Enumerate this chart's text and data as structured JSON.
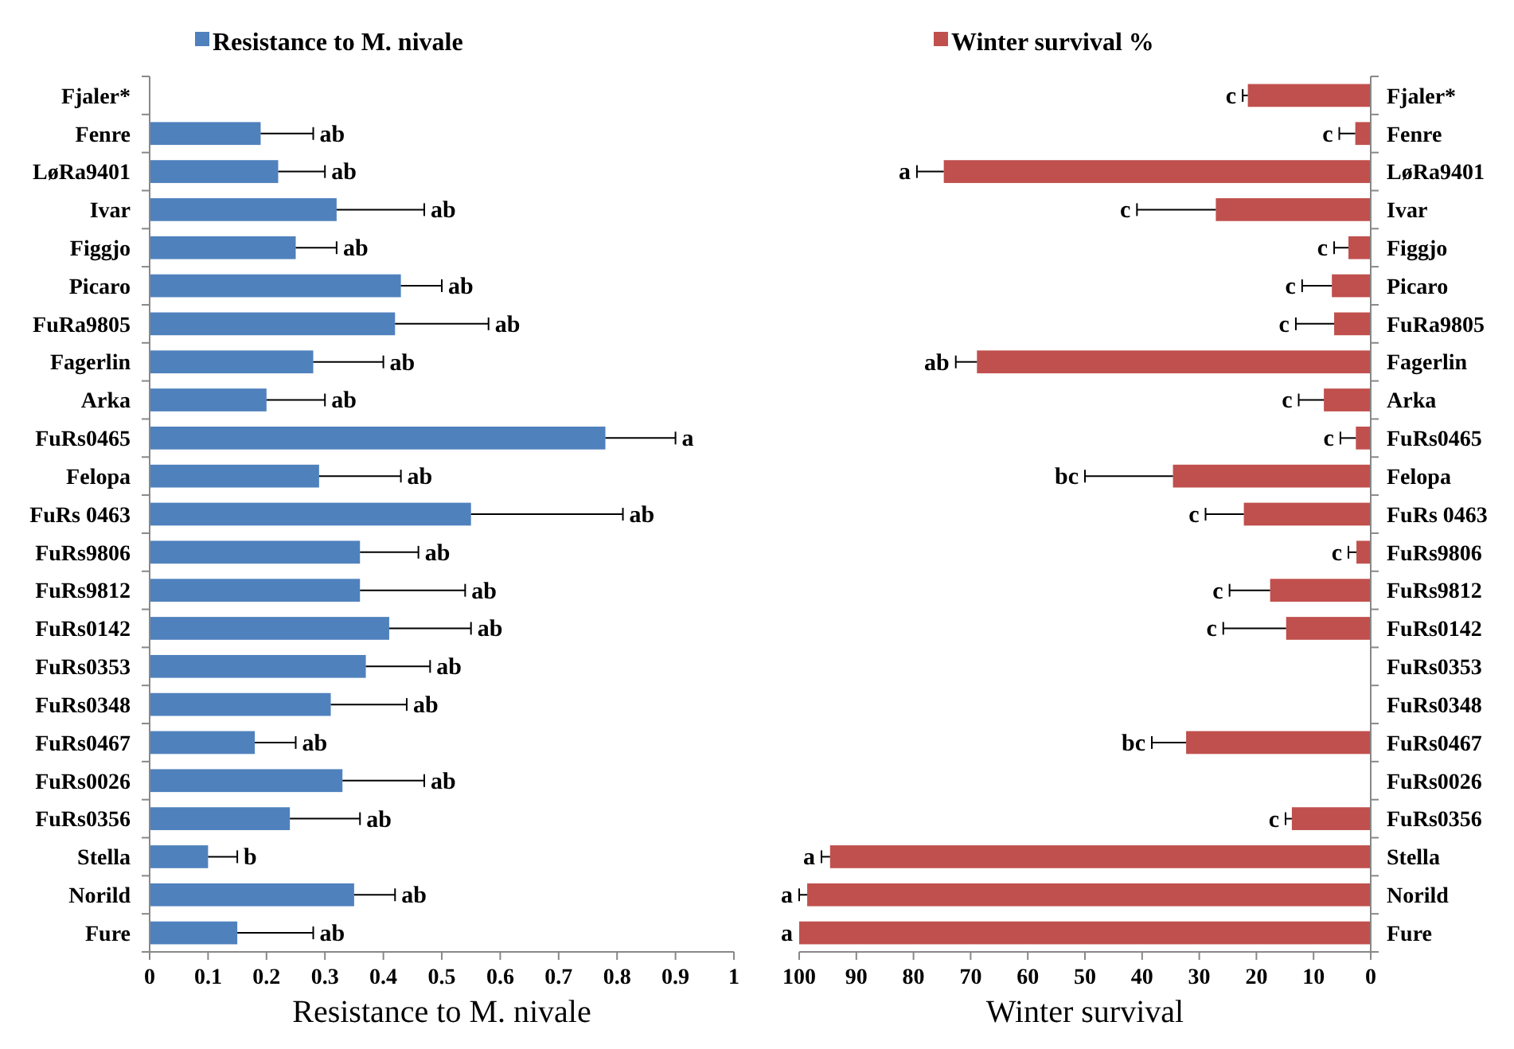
{
  "chart_data": [
    {
      "type": "bar",
      "orientation": "horizontal",
      "xlabel": "Resistance to M. nivale",
      "legend": "top",
      "categories": [
        "Fjaler*",
        "Fenre",
        "LøRa9401",
        "Ivar",
        "Figgjo",
        "Picaro",
        "FuRa9805",
        "Fagerlin",
        "Arka",
        "FuRs0465",
        "Felopa",
        "FuRs 0463",
        "FuRs9806",
        "FuRs9812",
        "FuRs0142",
        "FuRs0353",
        "FuRs0348",
        "FuRs0467",
        "FuRs0026",
        "FuRs0356",
        "Stella",
        "Norild",
        "Fure"
      ],
      "xlim": [
        0,
        1
      ],
      "xticks": [
        0,
        0.1,
        0.2,
        0.3,
        0.4,
        0.5,
        0.6,
        0.7,
        0.8,
        0.9,
        1
      ],
      "series": [
        {
          "name": "Resistance to M. nivale",
          "color": "#4f81bd",
          "values": [
            null,
            0.19,
            0.22,
            0.32,
            0.25,
            0.43,
            0.42,
            0.28,
            0.2,
            0.78,
            0.29,
            0.55,
            0.36,
            0.36,
            0.41,
            0.37,
            0.31,
            0.18,
            0.33,
            0.24,
            0.1,
            0.35,
            0.15
          ],
          "errors": [
            null,
            0.09,
            0.08,
            0.15,
            0.07,
            0.07,
            0.16,
            0.12,
            0.1,
            0.12,
            0.14,
            0.26,
            0.1,
            0.18,
            0.14,
            0.11,
            0.13,
            0.07,
            0.14,
            0.12,
            0.05,
            0.07,
            0.13
          ]
        }
      ],
      "annotations": [
        {
          "text": "ab",
          "x": 0.28,
          "y": "Fenre"
        },
        {
          "text": "ab",
          "x": 0.3,
          "y": "LøRa9401"
        },
        {
          "text": "ab",
          "x": 0.47,
          "y": "Ivar"
        },
        {
          "text": "ab",
          "x": 0.32,
          "y": "Figgjo"
        },
        {
          "text": "ab",
          "x": 0.5,
          "y": "Picaro"
        },
        {
          "text": "ab",
          "x": 0.58,
          "y": "FuRa9805"
        },
        {
          "text": "ab",
          "x": 0.4,
          "y": "Fagerlin"
        },
        {
          "text": "ab",
          "x": 0.3,
          "y": "Arka"
        },
        {
          "text": "a",
          "x": 0.9,
          "y": "FuRs0465"
        },
        {
          "text": "ab",
          "x": 0.43,
          "y": "Felopa"
        },
        {
          "text": "ab",
          "x": 0.81,
          "y": "FuRs 0463"
        },
        {
          "text": "ab",
          "x": 0.46,
          "y": "FuRs9806"
        },
        {
          "text": "ab",
          "x": 0.54,
          "y": "FuRs9812"
        },
        {
          "text": "ab",
          "x": 0.55,
          "y": "FuRs0142"
        },
        {
          "text": "ab",
          "x": 0.48,
          "y": "FuRs0353"
        },
        {
          "text": "ab",
          "x": 0.44,
          "y": "FuRs0348"
        },
        {
          "text": "ab",
          "x": 0.25,
          "y": "FuRs0467"
        },
        {
          "text": "ab",
          "x": 0.47,
          "y": "FuRs0026"
        },
        {
          "text": "ab",
          "x": 0.36,
          "y": "FuRs0356"
        },
        {
          "text": "b",
          "x": 0.15,
          "y": "Stella"
        },
        {
          "text": "ab",
          "x": 0.42,
          "y": "Norild"
        },
        {
          "text": "ab",
          "x": 0.28,
          "y": "Fure"
        }
      ]
    },
    {
      "type": "bar",
      "orientation": "horizontal",
      "xlabel": "Winter survival",
      "legend": "top",
      "categories": [
        "Fjaler*",
        "Fenre",
        "LøRa9401",
        "Ivar",
        "Figgjo",
        "Picaro",
        "FuRa9805",
        "Fagerlin",
        "Arka",
        "FuRs0465",
        "Felopa",
        "FuRs 0463",
        "FuRs9806",
        "FuRs9812",
        "FuRs0142",
        "FuRs0353",
        "FuRs0348",
        "FuRs0467",
        "FuRs0026",
        "FuRs0356",
        "Stella",
        "Norild",
        "Fure"
      ],
      "xlim": [
        100,
        0
      ],
      "xticks": [
        100,
        90,
        80,
        70,
        60,
        50,
        40,
        30,
        20,
        10,
        0
      ],
      "series": [
        {
          "name": "Winter survival %",
          "color": "#c0504d",
          "values": [
            21.5,
            2.7,
            74.7,
            27.1,
            3.9,
            6.8,
            6.4,
            68.9,
            8.2,
            2.6,
            34.6,
            22.2,
            2.5,
            17.6,
            14.8,
            null,
            null,
            32.3,
            null,
            13.8,
            94.6,
            98.6,
            100
          ],
          "errors": [
            0.9,
            2.8,
            4.7,
            13.8,
            2.5,
            5.2,
            6.7,
            3.7,
            4.4,
            2.7,
            15.4,
            6.7,
            1.4,
            7.1,
            11,
            null,
            null,
            6,
            null,
            1.1,
            1.5,
            1.4,
            null
          ]
        }
      ],
      "annotations": [
        {
          "text": "c",
          "x": 22.4,
          "y": "Fjaler*"
        },
        {
          "text": "c",
          "x": 5.5,
          "y": "Fenre"
        },
        {
          "text": "a",
          "x": 79.4,
          "y": "LøRa9401"
        },
        {
          "text": "c",
          "x": 40.9,
          "y": "Ivar"
        },
        {
          "text": "c",
          "x": 6.4,
          "y": "Figgjo"
        },
        {
          "text": "c",
          "x": 12,
          "y": "Picaro"
        },
        {
          "text": "c",
          "x": 13.1,
          "y": "FuRa9805"
        },
        {
          "text": "ab",
          "x": 72.6,
          "y": "Fagerlin"
        },
        {
          "text": "c",
          "x": 12.6,
          "y": "Arka"
        },
        {
          "text": "c",
          "x": 5.3,
          "y": "FuRs0465"
        },
        {
          "text": "bc",
          "x": 50,
          "y": "Felopa"
        },
        {
          "text": "c",
          "x": 28.9,
          "y": "FuRs 0463"
        },
        {
          "text": "c",
          "x": 3.9,
          "y": "FuRs9806"
        },
        {
          "text": "c",
          "x": 24.7,
          "y": "FuRs9812"
        },
        {
          "text": "c",
          "x": 25.8,
          "y": "FuRs0142"
        },
        {
          "text": "bc",
          "x": 38.3,
          "y": "FuRs0467"
        },
        {
          "text": "c",
          "x": 14.9,
          "y": "FuRs0356"
        },
        {
          "text": "a",
          "x": 96.1,
          "y": "Stella"
        },
        {
          "text": "a",
          "x": 100,
          "y": "Norild"
        },
        {
          "text": "a",
          "x": 100,
          "y": "Fure"
        }
      ]
    }
  ]
}
